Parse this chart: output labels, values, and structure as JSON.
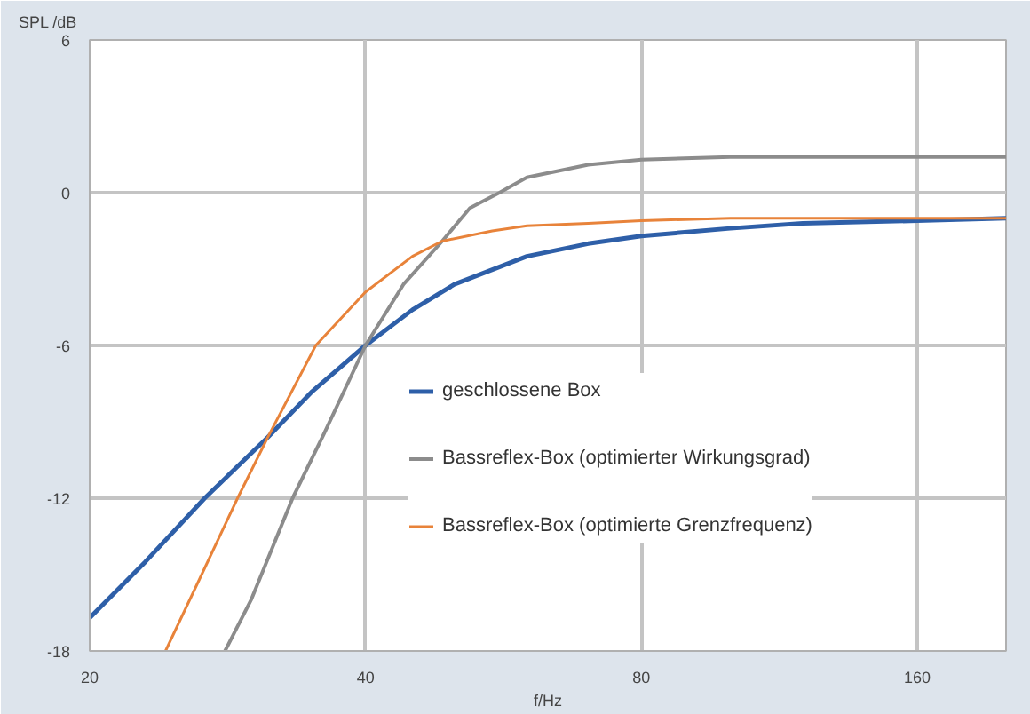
{
  "chart_data": {
    "type": "line",
    "xlabel": "f/Hz",
    "ylabel": "SPL /dB",
    "log": "x",
    "xlim": [
      20,
      200
    ],
    "xticks": [
      20,
      40,
      80,
      160
    ],
    "ylim": [
      -18,
      6
    ],
    "yticks": [
      6,
      0,
      -6,
      -12,
      -18
    ],
    "grid": true,
    "legend": "right",
    "marker": "none",
    "line_style": "solid",
    "series": [
      {
        "name": "geschlossene Box",
        "color": "#2e5fa8",
        "x": [
          20,
          23,
          26.7,
          31.3,
          35,
          40,
          45,
          50,
          60,
          70,
          80,
          100,
          120,
          160,
          200
        ],
        "values": [
          -16.7,
          -14.5,
          -12.0,
          -9.6,
          -7.8,
          -6.0,
          -4.6,
          -3.6,
          -2.5,
          -2.0,
          -1.7,
          -1.4,
          -1.2,
          -1.1,
          -1.0
        ]
      },
      {
        "name": "Bassreflex-Box (optimierter Wirkungsgrad)",
        "color": "#8c8c8c",
        "x": [
          28.1,
          30,
          33.3,
          36,
          40,
          44,
          48.5,
          52,
          56,
          60,
          70,
          80,
          100,
          130,
          200
        ],
        "values": [
          -18.0,
          -16.0,
          -12.0,
          -9.5,
          -6.0,
          -3.6,
          -1.9,
          -0.6,
          0.0,
          0.6,
          1.1,
          1.3,
          1.4,
          1.4,
          1.4
        ]
      },
      {
        "name": "Bassreflex-Box (optimierte Grenzfrequenz)",
        "color": "#e8833a",
        "x": [
          24.2,
          26.5,
          29.0,
          31.3,
          35.3,
          40,
          45,
          48.5,
          55,
          60,
          70,
          80,
          100,
          200
        ],
        "values": [
          -18.0,
          -15.0,
          -12.0,
          -9.6,
          -6.0,
          -3.9,
          -2.5,
          -1.9,
          -1.5,
          -1.3,
          -1.2,
          -1.1,
          -1.0,
          -1.0
        ]
      }
    ]
  }
}
